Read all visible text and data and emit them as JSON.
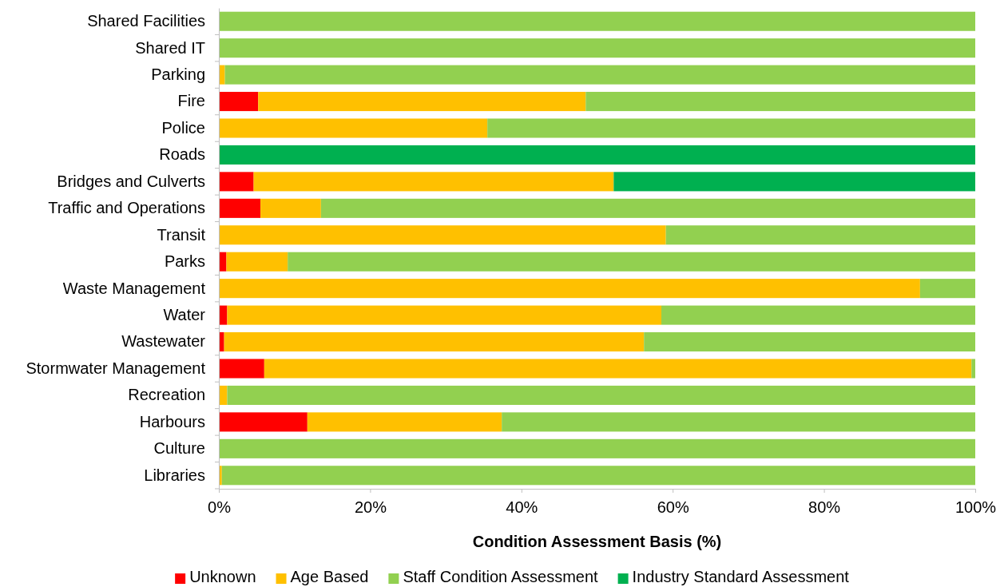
{
  "chart_data": {
    "type": "bar",
    "orientation": "horizontal",
    "stacked": true,
    "xlabel": "Condition Assessment Basis (%)",
    "legend": "bottom",
    "categories": [
      "Shared Facilities",
      "Shared IT",
      "Parking",
      "Fire",
      "Police",
      "Roads",
      "Bridges and Culverts",
      "Traffic and Operations",
      "Transit",
      "Parks",
      "Waste Management",
      "Water",
      "Wastewater",
      "Stormwater Management",
      "Recreation",
      "Harbours",
      "Culture",
      "Libraries"
    ],
    "series": [
      {
        "name": "Unknown",
        "color": "#ff0000",
        "values": [
          0,
          0,
          0,
          5.2,
          0,
          0,
          4.6,
          5.5,
          0,
          1.0,
          0,
          1.1,
          0.7,
          6.0,
          0,
          11.7,
          0,
          0
        ]
      },
      {
        "name": "Age Based",
        "color": "#ffc000",
        "values": [
          0,
          0,
          0.8,
          43.3,
          35.5,
          0,
          47.6,
          8.0,
          59.1,
          8.1,
          92.7,
          57.4,
          55.5,
          93.5,
          1.1,
          25.7,
          0,
          0.4
        ]
      },
      {
        "name": "Staff Condition Assessment",
        "color": "#92d050",
        "values": [
          100,
          100,
          99.2,
          51.5,
          64.5,
          0,
          0,
          86.5,
          40.9,
          90.9,
          7.3,
          41.5,
          43.8,
          0.5,
          98.9,
          62.6,
          100,
          99.6
        ]
      },
      {
        "name": "Industry Standard Assessment",
        "color": "#00b050",
        "values": [
          0,
          0,
          0,
          0,
          0,
          100,
          47.8,
          0,
          0,
          0,
          0,
          0,
          0,
          0,
          0,
          0,
          0,
          0
        ]
      }
    ],
    "xlim": [
      0,
      100
    ],
    "xticks": [
      {
        "value": 0,
        "label": "0%"
      },
      {
        "value": 20,
        "label": "20%"
      },
      {
        "value": 40,
        "label": "40%"
      },
      {
        "value": 60,
        "label": "60%"
      },
      {
        "value": 80,
        "label": "80%"
      },
      {
        "value": 100,
        "label": "100%"
      }
    ]
  }
}
